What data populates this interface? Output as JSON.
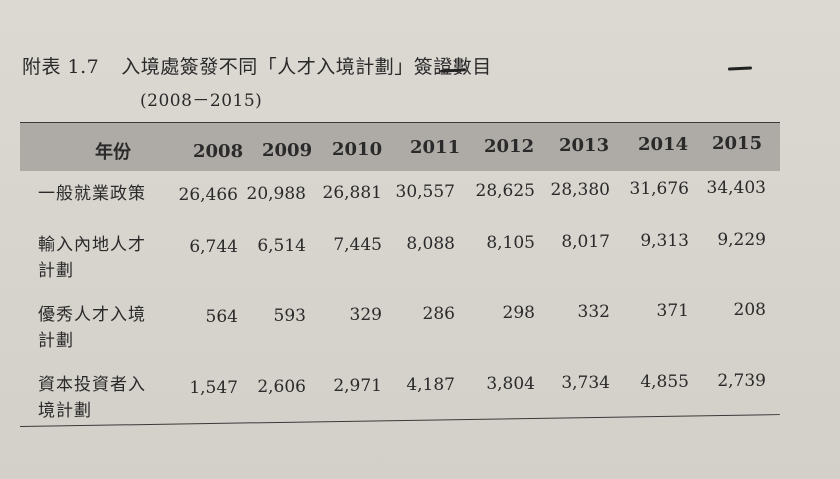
{
  "caption": {
    "label": "附表 1.7",
    "title": "入境處簽發不同「人才入境計劃」簽證數目",
    "years_range": "(2008－2015)"
  },
  "table": {
    "header_label": "年份",
    "years": [
      "2008",
      "2009",
      "2010",
      "2011",
      "2012",
      "2013",
      "2014",
      "2015"
    ],
    "rows": [
      {
        "label_lines": [
          "一般就業政策"
        ],
        "values": [
          "26,466",
          "20,988",
          "26,881",
          "30,557",
          "28,625",
          "28,380",
          "31,676",
          "34,403"
        ]
      },
      {
        "label_lines": [
          "輸入內地人才",
          "計劃"
        ],
        "values": [
          "6,744",
          "6,514",
          "7,445",
          "8,088",
          "8,105",
          "8,017",
          "9,313",
          "9,229"
        ]
      },
      {
        "label_lines": [
          "優秀人才入境",
          "計劃"
        ],
        "values": [
          "564",
          "593",
          "329",
          "286",
          "298",
          "332",
          "371",
          "208"
        ]
      },
      {
        "label_lines": [
          "資本投資者入",
          "境計劃"
        ],
        "values": [
          "1,547",
          "2,606",
          "2,971",
          "4,187",
          "3,804",
          "3,734",
          "4,855",
          "2,739"
        ]
      }
    ]
  }
}
